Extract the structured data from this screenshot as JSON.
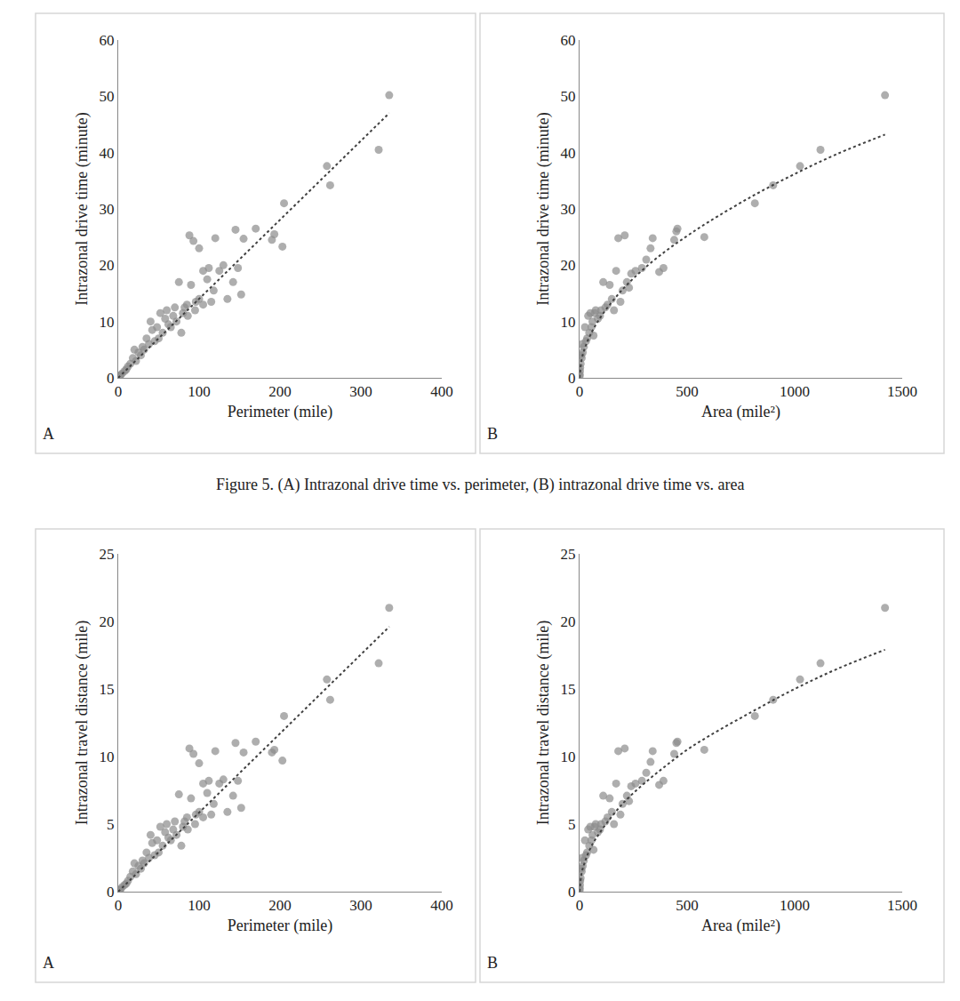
{
  "caption": "Figure 5. (A) Intrazonal drive time vs. perimeter, (B) intrazonal drive time vs. area",
  "chart_data": [
    {
      "type": "scatter",
      "x_label": "Perimeter (mile)",
      "y_label": "Intrazonal drive time (minute)",
      "xlim": [
        0,
        400
      ],
      "ylim": [
        0,
        60
      ],
      "xticks": [
        0,
        100,
        200,
        300,
        400
      ],
      "yticks": [
        0,
        10,
        20,
        30,
        40,
        50,
        60
      ],
      "grid": false,
      "annotations": [
        "A"
      ],
      "series": [
        {
          "type": "scatter",
          "marker": "circle",
          "color": "#8c8c8c",
          "x": [
            335,
            322,
            258,
            262,
            205,
            203,
            190,
            193,
            170,
            145,
            152,
            155,
            148,
            120,
            130,
            125,
            88,
            93,
            100,
            105,
            110,
            115,
            118,
            112,
            100,
            95,
            90,
            85,
            80,
            75,
            72,
            70,
            65,
            60,
            58,
            55,
            52,
            50,
            48,
            45,
            42,
            40,
            38,
            35,
            32,
            30,
            28,
            25,
            22,
            20,
            18,
            15,
            12,
            10,
            8,
            5,
            3,
            2,
            62,
            68,
            78,
            82,
            86,
            96,
            105,
            135,
            142
          ],
          "values": [
            50.2,
            40.5,
            37.6,
            34.2,
            31,
            23.3,
            24.5,
            25.5,
            26.5,
            26.3,
            14.8,
            24.7,
            19.5,
            24.8,
            20,
            19,
            25.3,
            24.3,
            23,
            19,
            17.5,
            13.5,
            15.5,
            19.5,
            14,
            12,
            16.5,
            13,
            11.5,
            17,
            10,
            12.5,
            9,
            12,
            10.5,
            8,
            11.5,
            7,
            9,
            6.5,
            8.5,
            10,
            6,
            7,
            5,
            5.5,
            4,
            4.5,
            3,
            5,
            3.5,
            2.5,
            2,
            1.5,
            1.2,
            0.8,
            0.5,
            0.3,
            9.5,
            11,
            8,
            12.5,
            11,
            13.5,
            13,
            14,
            17
          ]
        },
        {
          "type": "line",
          "line_style": "dot",
          "color": "#404040",
          "x": [
            0,
            335
          ],
          "values": [
            0,
            47
          ]
        }
      ]
    },
    {
      "type": "scatter",
      "x_label": "Area (mile²)",
      "y_label": "Intrazonal drive time (minute)",
      "xlim": [
        0,
        1500
      ],
      "ylim": [
        0,
        60
      ],
      "xticks": [
        0,
        500,
        1000,
        1500
      ],
      "yticks": [
        0,
        10,
        20,
        30,
        40,
        50,
        60
      ],
      "grid": false,
      "annotations": [
        "B"
      ],
      "series": [
        {
          "type": "scatter",
          "marker": "circle",
          "color": "#8c8c8c",
          "x": [
            1420,
            1120,
            1025,
            900,
            815,
            580,
            455,
            450,
            440,
            390,
            370,
            340,
            330,
            310,
            290,
            260,
            240,
            220,
            210,
            180,
            200,
            170,
            150,
            140,
            130,
            120,
            110,
            100,
            95,
            85,
            75,
            70,
            60,
            55,
            45,
            40,
            35,
            30,
            25,
            20,
            15,
            12,
            10,
            8,
            5,
            3,
            2,
            1,
            0.5,
            160,
            190,
            230,
            50,
            65
          ],
          "values": [
            50.2,
            40.5,
            37.6,
            34.2,
            31,
            25,
            26.5,
            26,
            24.5,
            19.5,
            18.8,
            24.8,
            23,
            21,
            19.5,
            19,
            18.5,
            17,
            25.3,
            24.8,
            15.5,
            19,
            14,
            16.5,
            13,
            12.5,
            17,
            12,
            11,
            10.5,
            12,
            11.5,
            10,
            9,
            8,
            11,
            7,
            6.5,
            9,
            5.5,
            4.5,
            6,
            3.5,
            4,
            2.5,
            1.8,
            1.2,
            0.6,
            0.3,
            12,
            13.5,
            16,
            11.5,
            7.5
          ]
        },
        {
          "type": "line",
          "line_style": "dot",
          "color": "#404040",
          "x": [
            0,
            10,
            25,
            50,
            100,
            200,
            300,
            400,
            500,
            600,
            800,
            1000,
            1200,
            1420
          ],
          "values": [
            0,
            3.3,
            5.3,
            7.6,
            10.9,
            15.7,
            19.4,
            22.5,
            25.2,
            27.7,
            32.2,
            36.2,
            39.8,
            43.2
          ]
        }
      ]
    },
    {
      "type": "scatter",
      "x_label": "Perimeter (mile)",
      "y_label": "Intrazonal travel distance (mile)",
      "xlim": [
        0,
        400
      ],
      "ylim": [
        0,
        25
      ],
      "xticks": [
        0,
        100,
        200,
        300,
        400
      ],
      "yticks": [
        0,
        5,
        10,
        15,
        20,
        25
      ],
      "grid": false,
      "annotations": [
        "A"
      ],
      "series": [
        {
          "type": "scatter",
          "marker": "circle",
          "color": "#8c8c8c",
          "x": [
            335,
            322,
            258,
            262,
            205,
            203,
            190,
            193,
            170,
            145,
            152,
            155,
            148,
            120,
            130,
            125,
            88,
            93,
            100,
            105,
            110,
            115,
            118,
            112,
            100,
            95,
            90,
            85,
            80,
            75,
            72,
            70,
            65,
            60,
            58,
            55,
            52,
            50,
            48,
            45,
            42,
            40,
            38,
            35,
            32,
            30,
            28,
            25,
            22,
            20,
            18,
            15,
            12,
            10,
            8,
            5,
            3,
            2,
            62,
            68,
            78,
            82,
            86,
            96,
            105,
            135,
            142
          ],
          "values": [
            21,
            16.9,
            15.7,
            14.2,
            13,
            9.7,
            10.3,
            10.5,
            11.1,
            11,
            6.2,
            10.3,
            8.2,
            10.4,
            8.3,
            8,
            10.6,
            10.2,
            9.5,
            8,
            7.3,
            5.7,
            6.5,
            8.2,
            5.9,
            5,
            6.9,
            5.5,
            4.8,
            7.2,
            4.2,
            5.2,
            3.8,
            5,
            4.4,
            3.4,
            4.8,
            2.9,
            3.8,
            2.7,
            3.6,
            4.2,
            2.5,
            2.9,
            2.1,
            2.3,
            1.7,
            1.9,
            1.3,
            2.1,
            1.5,
            1.1,
            0.8,
            0.6,
            0.5,
            0.35,
            0.2,
            0.1,
            4,
            4.6,
            3.4,
            5.2,
            4.6,
            5.7,
            5.5,
            5.9,
            7.1
          ]
        },
        {
          "type": "line",
          "line_style": "dot",
          "color": "#404040",
          "x": [
            0,
            335
          ],
          "values": [
            0,
            19.6
          ]
        }
      ]
    },
    {
      "type": "scatter",
      "x_label": "Area (mile²)",
      "y_label": "Intrazonal travel distance (mile)",
      "xlim": [
        0,
        1500
      ],
      "ylim": [
        0,
        25
      ],
      "xticks": [
        0,
        500,
        1000,
        1500
      ],
      "yticks": [
        0,
        5,
        10,
        15,
        20,
        25
      ],
      "grid": false,
      "annotations": [
        "B"
      ],
      "series": [
        {
          "type": "scatter",
          "marker": "circle",
          "color": "#8c8c8c",
          "x": [
            1420,
            1120,
            1025,
            900,
            815,
            580,
            455,
            450,
            440,
            390,
            370,
            340,
            330,
            310,
            290,
            260,
            240,
            220,
            210,
            180,
            200,
            170,
            150,
            140,
            130,
            120,
            110,
            100,
            95,
            85,
            75,
            70,
            60,
            55,
            45,
            40,
            35,
            30,
            25,
            20,
            15,
            12,
            10,
            8,
            5,
            3,
            2,
            1,
            0.5,
            160,
            190,
            230,
            50,
            65
          ],
          "values": [
            21,
            16.9,
            15.7,
            14.2,
            13,
            10.5,
            11.1,
            11,
            10.2,
            8.2,
            7.9,
            10.4,
            9.6,
            8.8,
            8.2,
            8,
            7.8,
            7.1,
            10.6,
            10.4,
            6.5,
            8,
            5.9,
            6.9,
            5.5,
            5.2,
            7.1,
            5,
            4.6,
            4.4,
            5,
            4.8,
            4.2,
            3.8,
            3.4,
            4.6,
            2.9,
            2.7,
            3.8,
            2.3,
            1.9,
            2.5,
            1.5,
            1.7,
            1,
            0.8,
            0.5,
            0.25,
            0.1,
            5,
            5.7,
            6.7,
            4.8,
            3.1
          ]
        },
        {
          "type": "line",
          "line_style": "dot",
          "color": "#404040",
          "x": [
            0,
            10,
            25,
            50,
            100,
            200,
            300,
            400,
            500,
            600,
            800,
            1000,
            1200,
            1420
          ],
          "values": [
            0,
            1.4,
            2.2,
            3.2,
            4.5,
            6.5,
            8.0,
            9.3,
            10.5,
            11.5,
            13.3,
            15.0,
            16.5,
            17.9
          ]
        }
      ]
    }
  ]
}
